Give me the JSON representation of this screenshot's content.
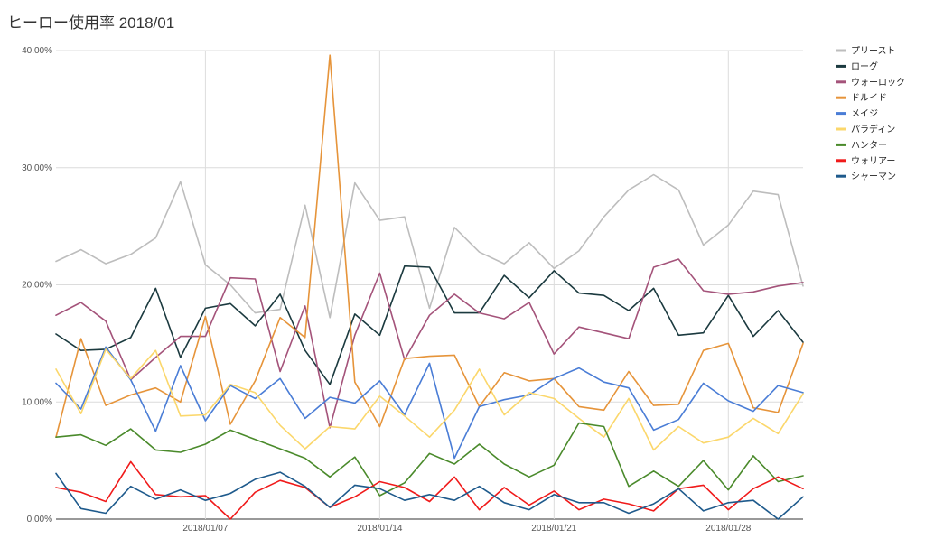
{
  "chart_data": {
    "type": "line",
    "title": "ヒーロー使用率 2018/01",
    "xlabel": "",
    "ylabel": "",
    "ylim": [
      0,
      40
    ],
    "yticks": [
      "0.00%",
      "10.00%",
      "20.00%",
      "30.00%",
      "40.00%"
    ],
    "xticks": [
      {
        "day": 7,
        "label": "2018/01/07"
      },
      {
        "day": 14,
        "label": "2018/01/14"
      },
      {
        "day": 21,
        "label": "2018/01/21"
      },
      {
        "day": 28,
        "label": "2018/01/28"
      }
    ],
    "x": [
      1,
      2,
      3,
      4,
      5,
      6,
      7,
      8,
      9,
      10,
      11,
      12,
      13,
      14,
      15,
      16,
      17,
      18,
      19,
      20,
      21,
      22,
      23,
      24,
      25,
      26,
      27,
      28,
      29,
      30,
      31
    ],
    "grid": true,
    "legend": "right",
    "series": [
      {
        "name": "プリースト",
        "color": "#bdbdbd",
        "values": [
          22.0,
          23.0,
          21.8,
          22.6,
          24.0,
          28.8,
          21.7,
          20.0,
          17.6,
          17.9,
          26.8,
          17.2,
          28.7,
          25.5,
          25.8,
          18.0,
          24.9,
          22.8,
          21.8,
          23.6,
          21.4,
          22.9,
          25.8,
          28.1,
          29.4,
          28.1,
          23.4,
          25.1,
          28.0,
          27.7,
          19.9
        ]
      },
      {
        "name": "ローグ",
        "color": "#1b3a3f",
        "values": [
          15.8,
          14.4,
          14.5,
          15.5,
          19.7,
          13.8,
          18.0,
          18.4,
          16.5,
          19.2,
          14.4,
          11.5,
          17.5,
          15.7,
          21.6,
          21.5,
          17.6,
          17.6,
          20.8,
          18.9,
          21.2,
          19.3,
          19.1,
          17.8,
          19.7,
          15.7,
          15.9,
          19.1,
          15.6,
          17.8,
          15.1
        ]
      },
      {
        "name": "ウォーロック",
        "color": "#a4537a",
        "values": [
          17.4,
          18.5,
          16.9,
          11.9,
          13.8,
          15.6,
          15.6,
          20.6,
          20.5,
          12.6,
          18.2,
          7.8,
          15.7,
          21.0,
          13.6,
          17.4,
          19.2,
          17.6,
          17.1,
          18.5,
          14.1,
          16.4,
          15.9,
          15.4,
          21.5,
          22.2,
          19.5,
          19.2,
          19.4,
          19.9,
          20.2
        ]
      },
      {
        "name": "ドルイド",
        "color": "#e6943a",
        "values": [
          7.0,
          15.4,
          9.7,
          10.6,
          11.2,
          10.0,
          17.3,
          8.1,
          11.8,
          17.2,
          15.5,
          39.6,
          11.7,
          7.9,
          13.7,
          13.9,
          14.0,
          9.6,
          12.5,
          11.8,
          12.0,
          9.6,
          9.3,
          12.6,
          9.7,
          9.8,
          14.4,
          15.0,
          9.5,
          9.1,
          15.0
        ]
      },
      {
        "name": "メイジ",
        "color": "#4a7dd6",
        "values": [
          11.6,
          9.4,
          14.7,
          11.9,
          7.5,
          13.1,
          8.4,
          11.4,
          10.3,
          12.0,
          8.6,
          10.4,
          9.9,
          11.8,
          8.9,
          13.3,
          5.2,
          9.6,
          10.2,
          10.6,
          12.0,
          12.9,
          11.7,
          11.2,
          7.6,
          8.5,
          11.6,
          10.1,
          9.2,
          11.4,
          10.8
        ]
      },
      {
        "name": "パラディン",
        "color": "#fbd76b",
        "values": [
          12.8,
          9.0,
          14.5,
          12.0,
          14.4,
          8.8,
          8.9,
          11.5,
          10.8,
          8.0,
          6.0,
          7.9,
          7.7,
          10.5,
          8.8,
          7.0,
          9.3,
          12.8,
          8.9,
          10.8,
          10.3,
          8.6,
          7.0,
          10.3,
          5.9,
          7.9,
          6.5,
          7.0,
          8.6,
          7.3,
          10.7
        ]
      },
      {
        "name": "ハンター",
        "color": "#4a8a2b",
        "values": [
          7.0,
          7.2,
          6.3,
          7.7,
          5.9,
          5.7,
          6.4,
          7.6,
          6.8,
          6.0,
          5.2,
          3.6,
          5.3,
          2.0,
          3.1,
          5.6,
          4.7,
          6.4,
          4.7,
          3.6,
          4.6,
          8.2,
          7.9,
          2.8,
          4.1,
          2.8,
          5.0,
          2.5,
          5.4,
          3.2,
          3.7
        ]
      },
      {
        "name": "ウォリアー",
        "color": "#f01a1a",
        "values": [
          2.7,
          2.3,
          1.5,
          4.9,
          2.1,
          1.9,
          2.0,
          0.0,
          2.3,
          3.3,
          2.7,
          1.0,
          1.9,
          3.2,
          2.7,
          1.5,
          3.6,
          0.8,
          2.7,
          1.2,
          2.4,
          0.8,
          1.7,
          1.3,
          0.7,
          2.6,
          2.9,
          0.8,
          2.6,
          3.6,
          2.6
        ]
      },
      {
        "name": "シャーマン",
        "color": "#1e5a8c",
        "values": [
          3.9,
          0.9,
          0.5,
          2.8,
          1.7,
          2.5,
          1.6,
          2.2,
          3.4,
          4.0,
          2.8,
          1.0,
          2.9,
          2.6,
          1.6,
          2.1,
          1.6,
          2.8,
          1.4,
          0.8,
          2.1,
          1.4,
          1.4,
          0.5,
          1.3,
          2.6,
          0.7,
          1.4,
          1.6,
          0.0,
          1.9
        ]
      }
    ]
  }
}
